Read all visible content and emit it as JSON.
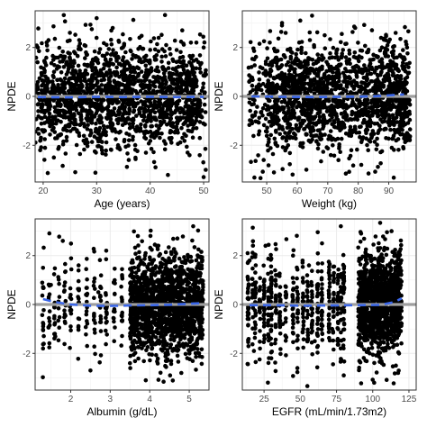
{
  "chart_data": [
    {
      "type": "scatter",
      "xlabel": "Age (years)",
      "ylabel": "NPDE",
      "xlim": [
        18.5,
        51
      ],
      "ylim": [
        -3.5,
        3.5
      ],
      "xticks": [
        20,
        30,
        40,
        50
      ],
      "yticks": [
        -2,
        0,
        2
      ],
      "points_summary": "dense cloud of points across Age 19-50, NPDE mostly between -3 and 3",
      "points_sample": [
        [
          19,
          2.0
        ],
        [
          19.5,
          -1.8
        ],
        [
          20,
          0.5
        ],
        [
          21,
          2.3
        ],
        [
          22,
          -2.5
        ],
        [
          23,
          1.2
        ],
        [
          24,
          -0.8
        ],
        [
          25,
          2.6
        ],
        [
          26,
          -3.1
        ],
        [
          27,
          0.9
        ],
        [
          28,
          1.8
        ],
        [
          29,
          -1.5
        ],
        [
          30,
          3.2
        ],
        [
          31,
          -2.2
        ],
        [
          32,
          0.3
        ],
        [
          33,
          2.8
        ],
        [
          34,
          -1.1
        ],
        [
          35,
          1.6
        ],
        [
          36,
          -2.6
        ],
        [
          37,
          0.7
        ],
        [
          38,
          2.4
        ],
        [
          39,
          -0.5
        ],
        [
          40,
          1.9
        ],
        [
          41,
          -2.9
        ],
        [
          42,
          0.2
        ],
        [
          43,
          2.1
        ],
        [
          44,
          -1.7
        ],
        [
          45,
          1.0
        ],
        [
          46,
          2.7
        ],
        [
          47,
          -2.3
        ],
        [
          48,
          0.6
        ],
        [
          49,
          1.4
        ],
        [
          50,
          -3.3
        ],
        [
          50,
          2.0
        ]
      ],
      "reference_line_y": 0,
      "smooth": {
        "x": [
          19,
          25,
          30,
          35,
          40,
          45,
          50
        ],
        "y": [
          -0.03,
          -0.04,
          -0.02,
          -0.03,
          -0.02,
          -0.03,
          -0.02
        ]
      }
    },
    {
      "type": "scatter",
      "xlabel": "Weight (kg)",
      "ylabel": "NPDE",
      "xlim": [
        42,
        99
      ],
      "ylim": [
        -3.5,
        3.5
      ],
      "xticks": [
        50,
        60,
        70,
        80,
        90
      ],
      "yticks": [
        -2,
        0,
        2
      ],
      "points_summary": "dense cloud of points across Weight 45-97 kg, sparser below 50 kg",
      "points_sample": [
        [
          45,
          1.2
        ],
        [
          45,
          -1.0
        ],
        [
          47,
          0.3
        ],
        [
          49,
          -2.6
        ],
        [
          51,
          2.2
        ],
        [
          53,
          -1.4
        ],
        [
          55,
          2.9
        ],
        [
          57,
          -2.0
        ],
        [
          59,
          0.8
        ],
        [
          61,
          3.1
        ],
        [
          63,
          -3.0
        ],
        [
          65,
          1.5
        ],
        [
          67,
          -0.7
        ],
        [
          69,
          2.5
        ],
        [
          71,
          -2.4
        ],
        [
          73,
          0.4
        ],
        [
          75,
          1.9
        ],
        [
          77,
          -1.6
        ],
        [
          79,
          2.8
        ],
        [
          81,
          -2.8
        ],
        [
          83,
          0.9
        ],
        [
          85,
          1.7
        ],
        [
          87,
          -1.2
        ],
        [
          89,
          2.3
        ],
        [
          91,
          -2.1
        ],
        [
          93,
          0.5
        ],
        [
          95,
          1.1
        ],
        [
          96,
          -1.5
        ],
        [
          96,
          2.0
        ]
      ],
      "reference_line_y": 0,
      "smooth": {
        "x": [
          45,
          55,
          65,
          75,
          85,
          95
        ],
        "y": [
          0.0,
          -0.02,
          -0.03,
          -0.02,
          0.0,
          0.08
        ]
      }
    },
    {
      "type": "scatter",
      "xlabel": "Albumin (g/dL)",
      "ylabel": "NPDE",
      "xlim": [
        1.1,
        5.5
      ],
      "ylim": [
        -3.5,
        3.5
      ],
      "xticks": [
        2,
        3,
        4,
        5
      ],
      "yticks": [
        -2,
        0,
        2
      ],
      "points_summary": "sparse vertical bands of points below 3.5 g/dL, dense cloud from 3.5 to 5.3 g/dL",
      "points_sample": [
        [
          1.3,
          1.5
        ],
        [
          1.3,
          -1.8
        ],
        [
          1.5,
          0.8
        ],
        [
          1.6,
          -1.2
        ],
        [
          1.8,
          2.6
        ],
        [
          2.0,
          -0.9
        ],
        [
          2.2,
          1.6
        ],
        [
          2.5,
          -2.7
        ],
        [
          2.7,
          0.5
        ],
        [
          2.9,
          2.2
        ],
        [
          3.1,
          -1.5
        ],
        [
          3.3,
          1.2
        ],
        [
          3.5,
          -2.4
        ],
        [
          3.7,
          2.8
        ],
        [
          3.9,
          -3.1
        ],
        [
          4.0,
          0.6
        ],
        [
          4.2,
          2.4
        ],
        [
          4.4,
          -2.0
        ],
        [
          4.5,
          1.0
        ],
        [
          4.7,
          2.7
        ],
        [
          4.8,
          -2.8
        ],
        [
          5.0,
          0.4
        ],
        [
          5.1,
          3.2
        ],
        [
          5.2,
          -1.6
        ],
        [
          5.3,
          1.9
        ]
      ],
      "reference_line_y": 0,
      "smooth": {
        "x": [
          1.3,
          1.6,
          2.0,
          2.5,
          3.0,
          3.5,
          4.0,
          4.5,
          5.0,
          5.3
        ],
        "y": [
          0.22,
          0.1,
          0.0,
          -0.05,
          -0.06,
          -0.04,
          -0.03,
          -0.01,
          0.03,
          0.05
        ]
      }
    },
    {
      "type": "scatter",
      "xlabel": "EGFR (mL/min/1.73m2)",
      "ylabel": "NPDE",
      "xlim": [
        10,
        130
      ],
      "ylim": [
        -3.5,
        3.5
      ],
      "xticks": [
        25,
        50,
        75,
        100,
        125
      ],
      "yticks": [
        -2,
        0,
        2
      ],
      "points_summary": "vertical bands of points at discrete EGFR values 15-80, dense cloud from 90 to 120",
      "points_sample": [
        [
          15,
          1.8
        ],
        [
          18,
          -1.9
        ],
        [
          22,
          0.6
        ],
        [
          26,
          2.4
        ],
        [
          30,
          -2.2
        ],
        [
          34,
          1.2
        ],
        [
          38,
          -0.8
        ],
        [
          45,
          2.0
        ],
        [
          48,
          -2.6
        ],
        [
          52,
          0.9
        ],
        [
          56,
          1.6
        ],
        [
          60,
          -1.5
        ],
        [
          65,
          2.5
        ],
        [
          72,
          -1.0
        ],
        [
          78,
          3.2
        ],
        [
          80,
          -2.9
        ],
        [
          92,
          2.9
        ],
        [
          95,
          -2.3
        ],
        [
          98,
          1.3
        ],
        [
          101,
          -3.2
        ],
        [
          104,
          2.2
        ],
        [
          107,
          -1.8
        ],
        [
          110,
          0.7
        ],
        [
          113,
          3.0
        ],
        [
          116,
          -2.5
        ],
        [
          119,
          1.5
        ]
      ],
      "reference_line_y": 0,
      "smooth": {
        "x": [
          15,
          30,
          50,
          70,
          90,
          105,
          115,
          120
        ],
        "y": [
          -0.03,
          -0.03,
          -0.05,
          -0.04,
          -0.03,
          -0.02,
          0.1,
          0.25
        ]
      }
    }
  ]
}
